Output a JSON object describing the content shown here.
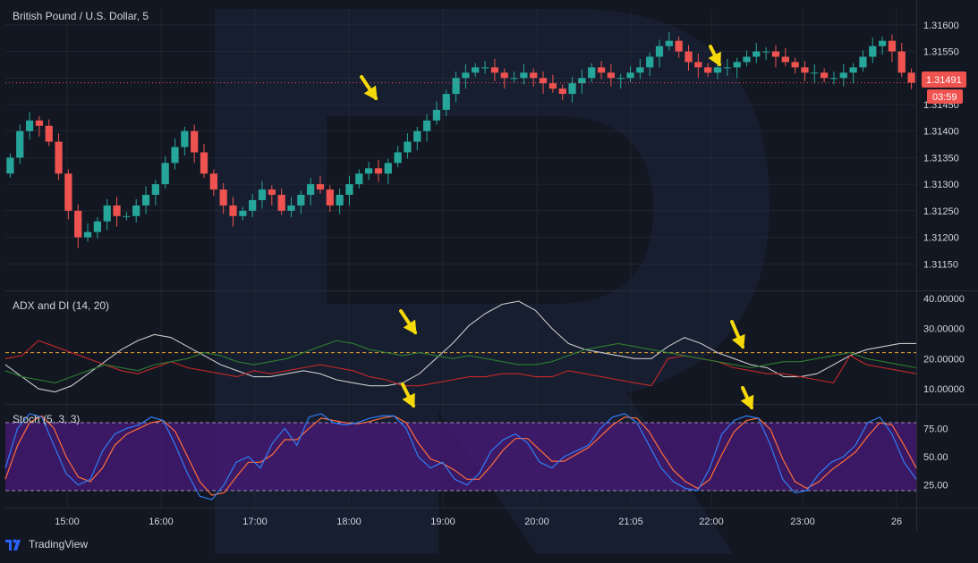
{
  "header": {
    "symbol_title": "British Pound / U.S. Dollar, 5"
  },
  "brand": {
    "name": "TradingView"
  },
  "last_price": {
    "value": "1.31491",
    "countdown": "03:59"
  },
  "colors": {
    "bg": "#131722",
    "up": "#26a69a",
    "down": "#ef5350",
    "grid": "#2a2e39",
    "stoch_fill": "#4a1a7a",
    "arrow": "#f5d90a"
  },
  "chart_data": [
    {
      "type": "candlestick",
      "title": "British Pound / U.S. Dollar, 5",
      "xlabel": "",
      "ylabel": "",
      "x_ticks": [
        "15:00",
        "16:00",
        "17:00",
        "18:00",
        "19:00",
        "20:00",
        "21:05",
        "22:00",
        "23:00",
        "26"
      ],
      "y_ticks": [
        "1.31150",
        "1.31200",
        "1.31250",
        "1.31300",
        "1.31350",
        "1.31400",
        "1.31450",
        "1.31500",
        "1.31550",
        "1.31600"
      ],
      "ylim": [
        1.311,
        1.3163
      ],
      "closes_approx": [
        1.3135,
        1.314,
        1.3142,
        1.3141,
        1.3138,
        1.3132,
        1.3125,
        1.312,
        1.3121,
        1.3123,
        1.3126,
        1.3124,
        1.3124,
        1.3126,
        1.3128,
        1.313,
        1.3134,
        1.3137,
        1.314,
        1.3136,
        1.3132,
        1.3129,
        1.3126,
        1.3124,
        1.3125,
        1.3127,
        1.3129,
        1.3128,
        1.3125,
        1.3126,
        1.3128,
        1.313,
        1.3129,
        1.3126,
        1.3128,
        1.313,
        1.3132,
        1.3133,
        1.3132,
        1.3134,
        1.3136,
        1.3138,
        1.314,
        1.3142,
        1.3144,
        1.3147,
        1.315,
        1.3151,
        1.3152,
        1.3152,
        1.3151,
        1.315,
        1.315,
        1.3151,
        1.315,
        1.3149,
        1.3148,
        1.3147,
        1.3149,
        1.315,
        1.3152,
        1.3151,
        1.315,
        1.315,
        1.3151,
        1.3152,
        1.3154,
        1.3156,
        1.3157,
        1.3155,
        1.3153,
        1.3152,
        1.3151,
        1.3152,
        1.3152,
        1.3153,
        1.3154,
        1.3155,
        1.3155,
        1.3154,
        1.3153,
        1.3152,
        1.3151,
        1.3151,
        1.315,
        1.315,
        1.3151,
        1.3152,
        1.3154,
        1.3156,
        1.3157,
        1.3155,
        1.3151,
        1.31491
      ],
      "annotations": [
        "arrow near 18:20 breakout",
        "arrow near 22:05"
      ]
    },
    {
      "type": "line",
      "title": "ADX and DI (14, 20)",
      "y_ticks": [
        "10.00000",
        "20.00000",
        "30.00000",
        "40.00000"
      ],
      "ylim": [
        5,
        42
      ],
      "threshold": 22,
      "series": [
        {
          "values": [
            18,
            14,
            10,
            9,
            11,
            15,
            19,
            23,
            26,
            28,
            27,
            24,
            21,
            18,
            16,
            14,
            14,
            15,
            16,
            15,
            13,
            12,
            11,
            11,
            12,
            15,
            20,
            25,
            31,
            35,
            38,
            39,
            36,
            30,
            25,
            23,
            22,
            21,
            20,
            20,
            24,
            27,
            25,
            22,
            20,
            18,
            17,
            14,
            14,
            15,
            18,
            21,
            23,
            24,
            25,
            25
          ]
        },
        {
          "values": [
            20,
            21,
            26,
            24,
            22,
            20,
            18,
            16,
            15,
            17,
            19,
            17,
            16,
            15,
            14,
            16,
            15,
            16,
            17,
            18,
            17,
            16,
            14,
            13,
            11,
            11,
            12,
            13,
            14,
            14,
            15,
            15,
            14,
            14,
            16,
            15,
            14,
            13,
            12,
            11,
            20,
            21,
            20,
            19,
            17,
            16,
            15,
            15,
            14,
            13,
            12,
            21,
            18,
            17,
            16,
            15
          ]
        },
        {
          "values": [
            16,
            14,
            13,
            12,
            14,
            16,
            18,
            17,
            16,
            18,
            19,
            20,
            22,
            21,
            19,
            18,
            19,
            20,
            22,
            24,
            26,
            25,
            23,
            22,
            21,
            22,
            21,
            20,
            21,
            20,
            19,
            18,
            18,
            19,
            21,
            23,
            24,
            25,
            24,
            23,
            22,
            21,
            20,
            19,
            18,
            17,
            18,
            19,
            19,
            20,
            21,
            22,
            20,
            19,
            18,
            17
          ]
        }
      ],
      "annotations": [
        "arrow near 18:40",
        "arrow near 22:15"
      ]
    },
    {
      "type": "line",
      "title": "Stoch (5, 3, 3)",
      "y_ticks": [
        "25.00",
        "50.00",
        "75.00"
      ],
      "ylim": [
        5,
        95
      ],
      "band": [
        20,
        80
      ],
      "series": [
        {
          "values": [
            40,
            75,
            88,
            85,
            60,
            35,
            25,
            30,
            55,
            70,
            75,
            78,
            85,
            82,
            60,
            35,
            15,
            12,
            25,
            45,
            50,
            40,
            62,
            75,
            60,
            85,
            88,
            80,
            78,
            80,
            84,
            86,
            86,
            75,
            50,
            40,
            45,
            30,
            25,
            35,
            55,
            65,
            70,
            62,
            45,
            40,
            50,
            55,
            60,
            75,
            85,
            88,
            80,
            60,
            40,
            28,
            22,
            20,
            40,
            70,
            82,
            86,
            84,
            60,
            30,
            18,
            20,
            35,
            45,
            50,
            60,
            80,
            85,
            70,
            45,
            30
          ]
        },
        {
          "values": [
            30,
            60,
            80,
            86,
            75,
            50,
            32,
            28,
            40,
            60,
            70,
            75,
            80,
            82,
            72,
            50,
            28,
            16,
            18,
            32,
            45,
            45,
            52,
            65,
            65,
            75,
            84,
            82,
            80,
            79,
            81,
            84,
            86,
            80,
            62,
            48,
            44,
            38,
            30,
            30,
            42,
            56,
            66,
            66,
            56,
            46,
            46,
            52,
            58,
            68,
            78,
            85,
            84,
            72,
            54,
            38,
            28,
            22,
            30,
            52,
            72,
            82,
            84,
            74,
            48,
            28,
            22,
            28,
            38,
            46,
            54,
            68,
            80,
            78,
            60,
            40
          ]
        }
      ],
      "annotations": [
        "arrow near 18:40",
        "arrow near 22:15"
      ]
    }
  ]
}
